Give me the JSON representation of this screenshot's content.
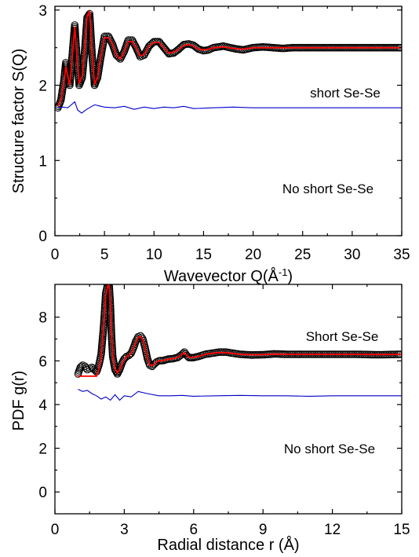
{
  "chart_data": [
    {
      "type": "line",
      "panel": "top",
      "xlabel": "Wavevector Q(Å",
      "xlabel_sup": "-1",
      "xlabel_end": ")",
      "ylabel": "Structure factor S(Q)",
      "xlim": [
        0,
        35
      ],
      "ylim": [
        0,
        3.05
      ],
      "xticks": [
        "0",
        "5",
        "10",
        "15",
        "20",
        "25",
        "30",
        "35"
      ],
      "yticks": [
        "0",
        "1",
        "2",
        "3"
      ],
      "annotations": [
        {
          "text": "short Se-Se",
          "x": 24,
          "y": 2.15
        },
        {
          "text": "No short Se-Se",
          "x": 22,
          "y": 0.6
        }
      ],
      "series": [
        {
          "role": "experimental data",
          "color": "#000000",
          "marker": "open-circle",
          "offset": 1.5,
          "x": [
            0.3,
            0.6,
            0.9,
            1.1,
            1.3,
            1.5,
            1.75,
            2.0,
            2.2,
            2.45,
            2.75,
            3.0,
            3.25,
            3.5,
            3.75,
            4.0,
            4.3,
            4.6,
            5.0,
            5.4,
            5.8,
            6.2,
            6.6,
            7.0,
            7.4,
            7.8,
            8.2,
            8.6,
            9.0,
            9.5,
            10.0,
            10.5,
            11.0,
            11.5,
            12.0,
            12.5,
            13.0,
            13.5,
            14.0,
            14.5,
            15.0,
            15.5,
            16.0,
            17.0,
            18.0,
            19.0,
            20.0,
            21.0,
            22.0,
            23.0,
            24.0,
            25.0,
            26.0,
            27.0,
            28.0,
            29.0,
            30.0,
            31.0,
            32.0,
            33.0,
            34.0,
            35.0
          ],
          "y": [
            0.2,
            0.3,
            0.55,
            0.8,
            0.6,
            0.5,
            0.9,
            1.3,
            0.9,
            0.5,
            0.6,
            0.95,
            1.4,
            1.45,
            0.9,
            0.5,
            0.6,
            0.85,
            1.15,
            1.15,
            1.05,
            0.9,
            0.85,
            0.95,
            1.1,
            1.1,
            1.0,
            0.88,
            0.9,
            1.02,
            1.08,
            1.08,
            1.0,
            0.92,
            0.93,
            0.98,
            1.04,
            1.05,
            1.03,
            0.98,
            0.96,
            0.97,
            1.0,
            1.02,
            0.99,
            0.97,
            1.0,
            1.01,
            1.0,
            0.99,
            1.0,
            1.0,
            1.0,
            1.0,
            1.0,
            1.0,
            1.0,
            1.0,
            1.0,
            1.0,
            1.0,
            1.0
          ]
        },
        {
          "role": "fit",
          "color": "#ff0000",
          "marker": "line",
          "offset": 1.5,
          "x": [
            0.3,
            0.6,
            0.9,
            1.1,
            1.3,
            1.5,
            1.75,
            2.0,
            2.2,
            2.45,
            2.75,
            3.0,
            3.25,
            3.5,
            3.75,
            4.0,
            4.3,
            4.6,
            5.0,
            5.4,
            5.8,
            6.2,
            6.6,
            7.0,
            7.4,
            7.8,
            8.2,
            8.6,
            9.0,
            9.5,
            10.0,
            10.5,
            11.0,
            11.5,
            12.0,
            12.5,
            13.0,
            13.5,
            14.0,
            14.5,
            15.0,
            15.5,
            16.0,
            17.0,
            18.0,
            19.0,
            20.0,
            21.0,
            22.0,
            23.0,
            24.0,
            25.0,
            26.0,
            27.0,
            28.0,
            29.0,
            30.0,
            31.0,
            32.0,
            33.0,
            34.0,
            35.0
          ],
          "y": [
            0.22,
            0.3,
            0.52,
            0.75,
            0.62,
            0.5,
            0.88,
            1.28,
            0.92,
            0.52,
            0.62,
            0.98,
            1.42,
            1.48,
            0.92,
            0.52,
            0.6,
            0.85,
            1.13,
            1.13,
            1.05,
            0.9,
            0.85,
            0.95,
            1.08,
            1.08,
            1.0,
            0.89,
            0.91,
            1.02,
            1.07,
            1.07,
            1.0,
            0.93,
            0.94,
            0.98,
            1.03,
            1.04,
            1.02,
            0.98,
            0.97,
            0.98,
            1.0,
            1.01,
            0.99,
            0.98,
            1.0,
            1.0,
            1.0,
            1.0,
            1.0,
            1.0,
            1.0,
            1.0,
            1.0,
            1.0,
            1.0,
            1.0,
            1.0,
            1.0,
            1.0,
            1.0
          ]
        },
        {
          "role": "difference",
          "color": "#0000cc",
          "marker": "line",
          "offset": 1.5,
          "x": [
            0.3,
            0.8,
            1.3,
            2.0,
            2.3,
            2.7,
            3.2,
            4.0,
            5.0,
            6.0,
            7.0,
            8.0,
            9.0,
            10.0,
            11.0,
            12.0,
            13.0,
            14.0,
            16.0,
            18.0,
            20.0,
            22.0,
            25.0,
            28.0,
            31.0,
            35.0
          ],
          "y": [
            0.2,
            0.21,
            0.2,
            0.28,
            0.17,
            0.13,
            0.18,
            0.24,
            0.21,
            0.2,
            0.22,
            0.18,
            0.21,
            0.19,
            0.21,
            0.2,
            0.22,
            0.19,
            0.2,
            0.21,
            0.2,
            0.2,
            0.2,
            0.2,
            0.2,
            0.2
          ]
        }
      ]
    },
    {
      "type": "line",
      "panel": "bottom",
      "xlabel": "Radial distance r (Å)",
      "ylabel": "PDF g(r)",
      "xlim": [
        0,
        15
      ],
      "ylim": [
        -1.0,
        9.5
      ],
      "xticks": [
        "0",
        "3",
        "6",
        "9",
        "12",
        "15"
      ],
      "yticks": [
        "0",
        "2",
        "4",
        "6",
        "8"
      ],
      "annotations": [
        {
          "text": "Short Se-Se",
          "x": 10.5,
          "y": 7.4
        },
        {
          "text": "No short Se-Se",
          "x": 9.5,
          "y": 1.8
        }
      ],
      "series": [
        {
          "role": "experimental data",
          "color": "#000000",
          "marker": "open-circle",
          "offset": 5.3,
          "x": [
            1.0,
            1.1,
            1.2,
            1.3,
            1.4,
            1.5,
            1.6,
            1.7,
            1.8,
            1.9,
            2.0,
            2.1,
            2.2,
            2.3,
            2.35,
            2.4,
            2.45,
            2.5,
            2.6,
            2.7,
            2.8,
            2.9,
            3.0,
            3.1,
            3.2,
            3.3,
            3.4,
            3.5,
            3.6,
            3.7,
            3.8,
            3.9,
            4.0,
            4.1,
            4.2,
            4.3,
            4.4,
            4.5,
            4.7,
            4.9,
            5.1,
            5.3,
            5.5,
            5.6,
            5.7,
            5.8,
            6.0,
            6.2,
            6.5,
            6.8,
            7.1,
            7.4,
            7.7,
            8.0,
            8.5,
            9.0,
            9.5,
            10.0,
            11.0,
            12.0,
            13.0,
            14.0,
            15.0
          ],
          "y": [
            0.1,
            0.4,
            0.5,
            0.45,
            0.3,
            0.35,
            0.4,
            0.3,
            0.2,
            0.5,
            1.0,
            2.2,
            3.8,
            4.3,
            4.1,
            3.2,
            1.8,
            0.9,
            0.3,
            0.1,
            0.3,
            0.6,
            0.8,
            0.9,
            0.95,
            1.05,
            1.3,
            1.6,
            1.8,
            1.85,
            1.7,
            1.3,
            0.8,
            0.5,
            0.45,
            0.55,
            0.65,
            0.7,
            0.72,
            0.78,
            0.8,
            0.85,
            1.0,
            1.1,
            0.95,
            0.85,
            0.85,
            0.9,
            1.0,
            1.05,
            1.1,
            1.1,
            1.05,
            1.0,
            0.97,
            0.98,
            1.02,
            1.0,
            1.0,
            1.0,
            1.0,
            0.98,
            1.0
          ]
        },
        {
          "role": "fit",
          "color": "#ff0000",
          "marker": "line",
          "offset": 5.3,
          "x": [
            1.0,
            1.2,
            1.4,
            1.6,
            1.8,
            1.9,
            2.0,
            2.1,
            2.2,
            2.3,
            2.35,
            2.4,
            2.45,
            2.5,
            2.6,
            2.7,
            2.8,
            2.9,
            3.0,
            3.1,
            3.2,
            3.3,
            3.4,
            3.5,
            3.6,
            3.7,
            3.8,
            3.9,
            4.0,
            4.1,
            4.2,
            4.3,
            4.4,
            4.5,
            4.7,
            4.9,
            5.1,
            5.3,
            5.5,
            5.6,
            5.7,
            5.8,
            6.0,
            6.2,
            6.5,
            6.8,
            7.1,
            7.4,
            7.7,
            8.0,
            8.5,
            9.0,
            9.5,
            10.0,
            11.0,
            12.0,
            13.0,
            14.0,
            15.0
          ],
          "y": [
            0.0,
            0.0,
            0.0,
            0.0,
            0.0,
            0.3,
            0.9,
            2.1,
            3.7,
            4.25,
            4.15,
            3.3,
            1.9,
            0.95,
            0.35,
            0.15,
            0.3,
            0.55,
            0.75,
            0.9,
            0.95,
            1.05,
            1.3,
            1.55,
            1.78,
            1.82,
            1.68,
            1.3,
            0.82,
            0.52,
            0.47,
            0.55,
            0.65,
            0.7,
            0.72,
            0.78,
            0.8,
            0.86,
            1.0,
            1.08,
            0.95,
            0.86,
            0.86,
            0.9,
            1.0,
            1.05,
            1.08,
            1.08,
            1.04,
            1.0,
            0.98,
            0.99,
            1.01,
            1.0,
            1.0,
            1.0,
            1.0,
            0.99,
            1.0
          ]
        },
        {
          "role": "difference",
          "color": "#0000cc",
          "marker": "line",
          "offset": 4.8,
          "x": [
            1.0,
            1.2,
            1.4,
            1.6,
            1.8,
            2.0,
            2.2,
            2.4,
            2.6,
            2.8,
            3.0,
            3.3,
            3.6,
            4.0,
            4.5,
            5.0,
            5.5,
            6.0,
            7.0,
            8.0,
            9.0,
            10.0,
            11.0,
            12.0,
            13.0,
            14.0,
            15.0
          ],
          "y": [
            -0.1,
            -0.2,
            -0.15,
            -0.3,
            -0.4,
            -0.55,
            -0.45,
            -0.6,
            -0.35,
            -0.6,
            -0.4,
            -0.45,
            -0.2,
            -0.3,
            -0.4,
            -0.4,
            -0.38,
            -0.42,
            -0.4,
            -0.38,
            -0.4,
            -0.4,
            -0.42,
            -0.4,
            -0.4,
            -0.4,
            -0.4
          ]
        }
      ]
    }
  ]
}
